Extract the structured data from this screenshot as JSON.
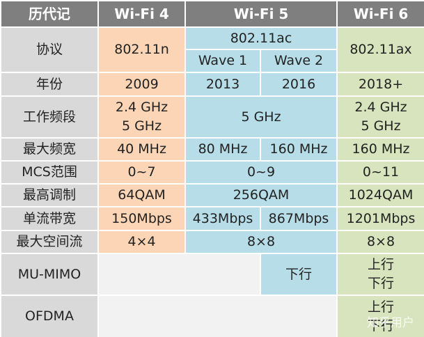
{
  "header": [
    "历代记",
    "Wi-Fi 4",
    "Wi-Fi 5",
    "Wi-Fi 6"
  ],
  "protocol": {
    "label": "协议",
    "wifi4": "802.11n",
    "wifi5": "802.11ac",
    "wave1": "Wave 1",
    "wave2": "Wave 2",
    "wifi6": "802.11ax"
  },
  "rows": [
    {
      "label": "年份",
      "cells": [
        "2009",
        "2013",
        "2016",
        "2018+"
      ]
    },
    {
      "label": "工作频段",
      "cells": [
        [
          "2.4 GHz",
          "5 GHz"
        ],
        "5 GHz",
        [
          "2.4 GHz",
          "5 GHz"
        ]
      ]
    },
    {
      "label": "最大频宽",
      "cells": [
        "40 MHz",
        "80 MHz",
        "160 MHz",
        "160 MHz"
      ]
    },
    {
      "label": "MCS范围",
      "cells": [
        "0~7",
        "0~9",
        "0~11"
      ]
    },
    {
      "label": "最高调制",
      "cells": [
        "64QAM",
        "256QAM",
        "1024QAM"
      ]
    },
    {
      "label": "单流带宽",
      "cells": [
        "150Mbps",
        "433Mbps",
        "867Mbps",
        "1201Mbps"
      ]
    },
    {
      "label": "最大空间流",
      "cells": [
        "4×4",
        "8×8",
        "8×8"
      ]
    },
    {
      "label": "MU-MIMO",
      "cells": [
        "下行",
        [
          "上行",
          "下行"
        ]
      ]
    },
    {
      "label": "OFDMA",
      "cells": [
        [
          "上行",
          "下行"
        ]
      ]
    }
  ],
  "watermark": "知乎用户"
}
